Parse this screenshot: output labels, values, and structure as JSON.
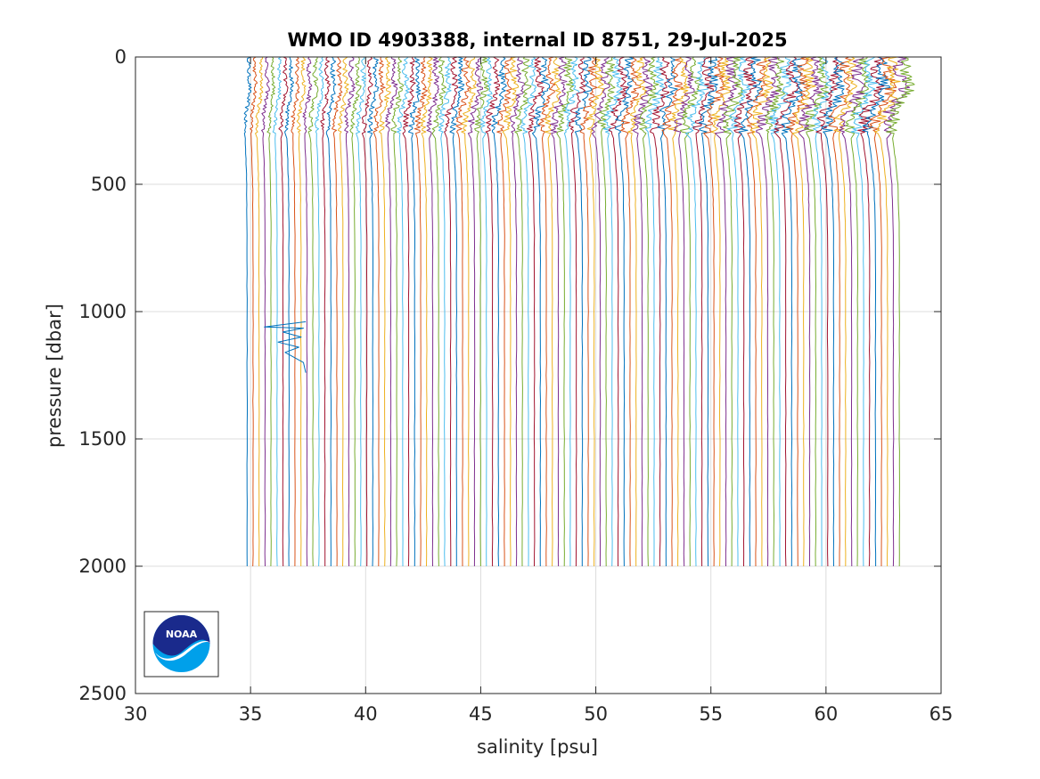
{
  "chart_data": {
    "type": "line",
    "title": "WMO ID 4903388, internal ID 8751, 29-Jul-2025",
    "xlabel": "salinity [psu]",
    "ylabel": "pressure [dbar]",
    "xlim": [
      30,
      65
    ],
    "ylim": [
      0,
      2500
    ],
    "y_reversed": true,
    "xticks": [
      30,
      35,
      40,
      45,
      50,
      55,
      60,
      65
    ],
    "yticks": [
      0,
      500,
      1000,
      1500,
      2000,
      2500
    ],
    "grid": true,
    "legend": "none",
    "series_colors": [
      "#0072bd",
      "#d95319",
      "#edb120",
      "#7e2f8e",
      "#77ac30",
      "#4dbeee",
      "#a2142f"
    ],
    "profiles": {
      "count": 110,
      "first_deep_salinity": 34.85,
      "offset_per_profile": 0.26,
      "max_pressure": 2000,
      "shape_pressure": [
        0,
        60,
        120,
        180,
        220,
        300,
        400,
        500,
        700,
        1000,
        1500,
        2000
      ],
      "shape_salinity_anomaly": [
        0.15,
        0.1,
        0.2,
        0.05,
        -0.1,
        -0.15,
        -0.08,
        -0.03,
        0.0,
        0.0,
        0.0,
        0.0
      ],
      "anomaly_profile": {
        "index": 8,
        "pressure": [
          1040,
          1060,
          1065,
          1080,
          1100,
          1120,
          1140,
          1160,
          1200,
          1240
        ],
        "salinity": [
          37.4,
          35.6,
          37.3,
          36.4,
          37.2,
          36.2,
          37.1,
          36.5,
          37.3,
          37.4
        ]
      }
    }
  },
  "logo": {
    "text": "NOAA",
    "name": "noaa-logo"
  }
}
